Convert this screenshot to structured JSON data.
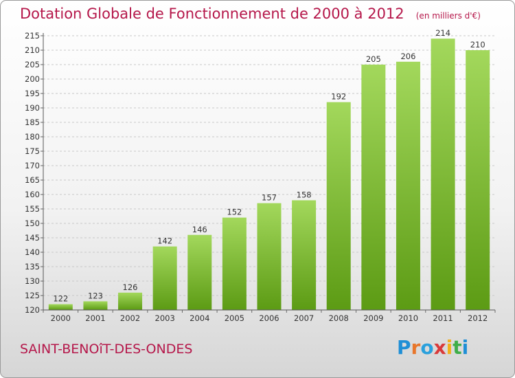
{
  "header": {
    "title": "Dotation Globale de Fonctionnement de 2000 à 2012",
    "unit": "(en milliers d'€)"
  },
  "footer": {
    "commune": "SAINT-BENOîT-DES-ONDES",
    "logo": {
      "letters": [
        "P",
        "r",
        "o",
        "x",
        "i",
        "t",
        "i"
      ],
      "colors": [
        "#1f8fd6",
        "#e8762b",
        "#2aa0dc",
        "#d93a3a",
        "#f2b01c",
        "#3fae49",
        "#1f8fd6"
      ]
    }
  },
  "colors": {
    "bar_light": "#a3d85c",
    "bar_dark": "#5c9b14",
    "title": "#b5174a"
  },
  "chart_data": {
    "type": "bar",
    "categories": [
      "2000",
      "2001",
      "2002",
      "2003",
      "2004",
      "2005",
      "2006",
      "2007",
      "2008",
      "2009",
      "2010",
      "2011",
      "2012"
    ],
    "values": [
      122,
      123,
      126,
      142,
      146,
      152,
      157,
      158,
      192,
      205,
      206,
      214,
      210
    ],
    "ylim": [
      120,
      215
    ],
    "yticks": [
      120,
      125,
      130,
      135,
      140,
      145,
      150,
      155,
      160,
      165,
      170,
      175,
      180,
      185,
      190,
      195,
      200,
      205,
      210,
      215
    ],
    "grid": true,
    "title": "Dotation Globale de Fonctionnement de 2000 à 2012"
  }
}
